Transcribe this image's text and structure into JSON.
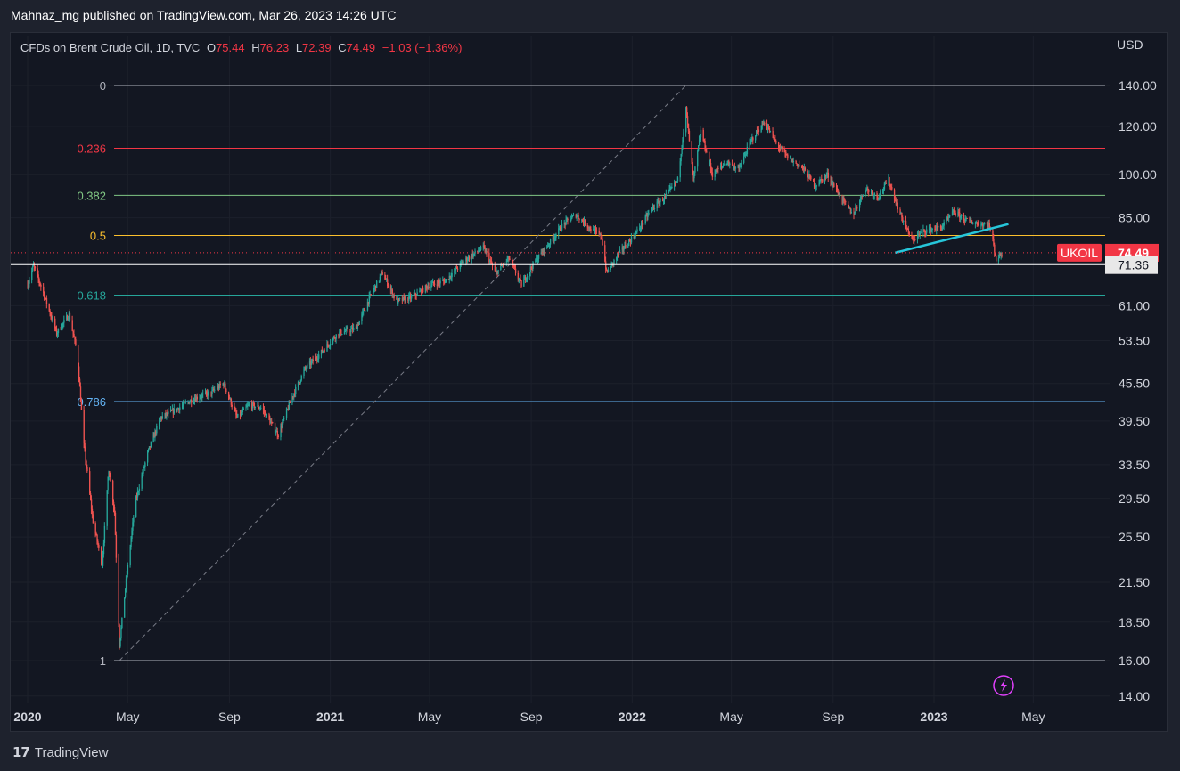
{
  "header": {
    "text": "Mahnaz_mg published on TradingView.com, Mar 26, 2023 14:26 UTC"
  },
  "legend": {
    "symbol": "CFDs on Brent Crude Oil, 1D, TVC",
    "o_key": "O",
    "o": "75.44",
    "h_key": "H",
    "h": "76.23",
    "l_key": "L",
    "l": "72.39",
    "c_key": "C",
    "c": "74.49",
    "change": "−1.03 (−1.36%)"
  },
  "footer": {
    "brand": "TradingView",
    "logo_mark": "17"
  },
  "colors": {
    "up": "#26a69a",
    "down": "#ef5350",
    "trendline": "#26c6da",
    "price_tag": "#f23645",
    "background": "#131722"
  },
  "icons": {
    "flash": "lightning-icon",
    "logo": "tradingview-logo-icon"
  },
  "chart_data": {
    "type": "candlestick",
    "currency_label": "USD",
    "symbol_tag": "UKOIL",
    "last_price": "74.49",
    "support_price": "71.36",
    "y_scale": "log",
    "ylim": [
      14,
      150
    ],
    "y_ticks": [
      {
        "v": 140,
        "label": "140.00"
      },
      {
        "v": 120,
        "label": "120.00"
      },
      {
        "v": 100,
        "label": "100.00"
      },
      {
        "v": 85,
        "label": "85.00"
      },
      {
        "v": 61,
        "label": "61.00"
      },
      {
        "v": 53.5,
        "label": "53.50"
      },
      {
        "v": 45.5,
        "label": "45.50"
      },
      {
        "v": 39.5,
        "label": "39.50"
      },
      {
        "v": 33.5,
        "label": "33.50"
      },
      {
        "v": 29.5,
        "label": "29.50"
      },
      {
        "v": 25.5,
        "label": "25.50"
      },
      {
        "v": 21.5,
        "label": "21.50"
      },
      {
        "v": 18.5,
        "label": "18.50"
      },
      {
        "v": 16,
        "label": "16.00"
      },
      {
        "v": 14,
        "label": "14.00"
      }
    ],
    "x_ticks": [
      {
        "date": "2020-01-01",
        "label": "2020",
        "bold": true
      },
      {
        "date": "2020-05-01",
        "label": "May",
        "bold": false
      },
      {
        "date": "2020-09-01",
        "label": "Sep",
        "bold": false
      },
      {
        "date": "2021-01-01",
        "label": "2021",
        "bold": true
      },
      {
        "date": "2021-05-01",
        "label": "May",
        "bold": false
      },
      {
        "date": "2021-09-01",
        "label": "Sep",
        "bold": false
      },
      {
        "date": "2022-01-01",
        "label": "2022",
        "bold": true
      },
      {
        "date": "2022-05-01",
        "label": "May",
        "bold": false
      },
      {
        "date": "2022-09-01",
        "label": "Sep",
        "bold": false
      },
      {
        "date": "2023-01-01",
        "label": "2023",
        "bold": true
      },
      {
        "date": "2023-05-01",
        "label": "May",
        "bold": false
      }
    ],
    "fib_levels": [
      {
        "level": "0",
        "price": 140,
        "color": "#b2b5be"
      },
      {
        "level": "0.236",
        "price": 110.5,
        "color": "#f23645"
      },
      {
        "level": "0.382",
        "price": 92.5,
        "color": "#81c784"
      },
      {
        "level": "0.5",
        "price": 79.5,
        "color": "#fbc02d"
      },
      {
        "level": "0.618",
        "price": 63.5,
        "color": "#26a69a"
      },
      {
        "level": "0.786",
        "price": 42.5,
        "color": "#64b5f6"
      },
      {
        "level": "1",
        "price": 16,
        "color": "#b2b5be"
      }
    ],
    "fib_anchor": {
      "start": {
        "date": "2020-04-21",
        "price": 16
      },
      "end": {
        "date": "2022-03-07",
        "price": 140
      }
    },
    "trendline": {
      "start": {
        "date": "2022-11-15",
        "price": 74.5
      },
      "end": {
        "date": "2023-04-01",
        "price": 83
      }
    },
    "horizontal_line": {
      "price": 71.36
    },
    "price_path": [
      {
        "date": "2020-01-01",
        "price": 66
      },
      {
        "date": "2020-01-08",
        "price": 71
      },
      {
        "date": "2020-01-20",
        "price": 64
      },
      {
        "date": "2020-02-05",
        "price": 55
      },
      {
        "date": "2020-02-20",
        "price": 59
      },
      {
        "date": "2020-03-01",
        "price": 51
      },
      {
        "date": "2020-03-09",
        "price": 36
      },
      {
        "date": "2020-03-20",
        "price": 27
      },
      {
        "date": "2020-03-31",
        "price": 23
      },
      {
        "date": "2020-04-08",
        "price": 33
      },
      {
        "date": "2020-04-15",
        "price": 28
      },
      {
        "date": "2020-04-21",
        "price": 17
      },
      {
        "date": "2020-04-28",
        "price": 21
      },
      {
        "date": "2020-05-10",
        "price": 29
      },
      {
        "date": "2020-05-25",
        "price": 35
      },
      {
        "date": "2020-06-10",
        "price": 40
      },
      {
        "date": "2020-06-25",
        "price": 41
      },
      {
        "date": "2020-07-20",
        "price": 43
      },
      {
        "date": "2020-08-10",
        "price": 44
      },
      {
        "date": "2020-08-25",
        "price": 45.5
      },
      {
        "date": "2020-09-10",
        "price": 40
      },
      {
        "date": "2020-09-25",
        "price": 42
      },
      {
        "date": "2020-10-10",
        "price": 41.5
      },
      {
        "date": "2020-10-30",
        "price": 37.5
      },
      {
        "date": "2020-11-15",
        "price": 43
      },
      {
        "date": "2020-12-01",
        "price": 48
      },
      {
        "date": "2020-12-20",
        "price": 51
      },
      {
        "date": "2021-01-10",
        "price": 55
      },
      {
        "date": "2021-02-01",
        "price": 56
      },
      {
        "date": "2021-02-20",
        "price": 64
      },
      {
        "date": "2021-03-05",
        "price": 69
      },
      {
        "date": "2021-03-22",
        "price": 62
      },
      {
        "date": "2021-04-10",
        "price": 63
      },
      {
        "date": "2021-05-01",
        "price": 66
      },
      {
        "date": "2021-05-20",
        "price": 67
      },
      {
        "date": "2021-06-10",
        "price": 72
      },
      {
        "date": "2021-07-05",
        "price": 76
      },
      {
        "date": "2021-07-20",
        "price": 69
      },
      {
        "date": "2021-08-05",
        "price": 73
      },
      {
        "date": "2021-08-20",
        "price": 66
      },
      {
        "date": "2021-09-05",
        "price": 72
      },
      {
        "date": "2021-09-25",
        "price": 78
      },
      {
        "date": "2021-10-10",
        "price": 83
      },
      {
        "date": "2021-10-25",
        "price": 86
      },
      {
        "date": "2021-11-10",
        "price": 82
      },
      {
        "date": "2021-11-25",
        "price": 79
      },
      {
        "date": "2021-12-01",
        "price": 69
      },
      {
        "date": "2021-12-15",
        "price": 74
      },
      {
        "date": "2022-01-05",
        "price": 80
      },
      {
        "date": "2022-01-25",
        "price": 88
      },
      {
        "date": "2022-02-10",
        "price": 92
      },
      {
        "date": "2022-02-25",
        "price": 98
      },
      {
        "date": "2022-03-07",
        "price": 128
      },
      {
        "date": "2022-03-16",
        "price": 98
      },
      {
        "date": "2022-03-25",
        "price": 118
      },
      {
        "date": "2022-04-08",
        "price": 100
      },
      {
        "date": "2022-04-25",
        "price": 105
      },
      {
        "date": "2022-05-10",
        "price": 102
      },
      {
        "date": "2022-05-25",
        "price": 114
      },
      {
        "date": "2022-06-10",
        "price": 122
      },
      {
        "date": "2022-06-25",
        "price": 112
      },
      {
        "date": "2022-07-10",
        "price": 106
      },
      {
        "date": "2022-07-25",
        "price": 103
      },
      {
        "date": "2022-08-10",
        "price": 96
      },
      {
        "date": "2022-08-25",
        "price": 100
      },
      {
        "date": "2022-09-10",
        "price": 92
      },
      {
        "date": "2022-09-25",
        "price": 86
      },
      {
        "date": "2022-10-10",
        "price": 95
      },
      {
        "date": "2022-10-25",
        "price": 92
      },
      {
        "date": "2022-11-07",
        "price": 98
      },
      {
        "date": "2022-11-20",
        "price": 87
      },
      {
        "date": "2022-12-05",
        "price": 78
      },
      {
        "date": "2022-12-20",
        "price": 81
      },
      {
        "date": "2023-01-10",
        "price": 82
      },
      {
        "date": "2023-01-25",
        "price": 87
      },
      {
        "date": "2023-02-10",
        "price": 84
      },
      {
        "date": "2023-02-25",
        "price": 83
      },
      {
        "date": "2023-03-08",
        "price": 83
      },
      {
        "date": "2023-03-13",
        "price": 78
      },
      {
        "date": "2023-03-17",
        "price": 72.5
      },
      {
        "date": "2023-03-24",
        "price": 74.5
      }
    ]
  }
}
